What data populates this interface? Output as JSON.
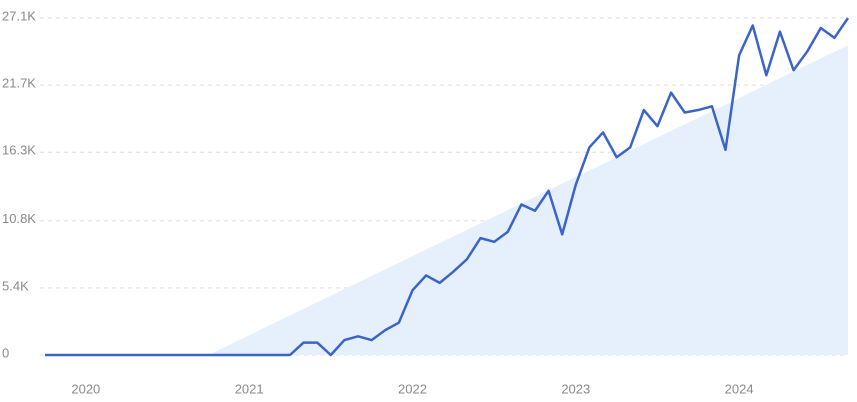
{
  "chart_data": {
    "type": "line",
    "categories": [
      null,
      null,
      null,
      "2020",
      null,
      null,
      null,
      null,
      null,
      null,
      null,
      null,
      null,
      null,
      null,
      "2021",
      null,
      null,
      null,
      null,
      null,
      null,
      null,
      null,
      null,
      null,
      null,
      "2022",
      null,
      null,
      null,
      null,
      null,
      null,
      null,
      null,
      null,
      null,
      null,
      "2023",
      null,
      null,
      null,
      null,
      null,
      null,
      null,
      null,
      null,
      null,
      null,
      "2024",
      null,
      null,
      null,
      null,
      null,
      null,
      null,
      null
    ],
    "series": [
      {
        "color": "#3a64c8",
        "values": [
          0,
          0,
          0,
          0,
          0,
          0,
          0,
          0,
          0,
          0,
          0,
          0,
          0,
          0,
          0,
          0,
          0,
          0,
          0,
          1000,
          1000,
          0,
          1200,
          1500,
          1200,
          2000,
          2600,
          5200,
          6400,
          5800,
          6700,
          7700,
          9400,
          9100,
          9900,
          12100,
          11600,
          13200,
          9700,
          13700,
          16700,
          17900,
          15900,
          16700,
          19700,
          18400,
          21100,
          19500,
          19700,
          20000,
          16500,
          24100,
          26500,
          22500,
          26000,
          22900,
          24400,
          26300,
          25500,
          27100
        ]
      }
    ],
    "trend": {
      "color": "#e6f0fd",
      "values": [
        null,
        null,
        null,
        null,
        null,
        null,
        null,
        null,
        null,
        null,
        null,
        null,
        0,
        530,
        1060,
        1590,
        2120,
        2650,
        3180,
        3710,
        4240,
        4770,
        5300,
        5830,
        6360,
        6890,
        7420,
        7950,
        8480,
        9010,
        9540,
        10070,
        10600,
        11130,
        11660,
        12190,
        12720,
        13250,
        13780,
        14310,
        14840,
        15370,
        15900,
        16430,
        16960,
        17490,
        18020,
        18550,
        19080,
        19610,
        20140,
        20670,
        21200,
        21730,
        22260,
        22790,
        23320,
        23850,
        24380,
        24910
      ]
    },
    "ylim": [
      0,
      27100
    ],
    "yticks": [
      0,
      {
        "value": 5400,
        "label": "5.4K"
      },
      {
        "value": 10800,
        "label": "10.8K"
      },
      {
        "value": 16300,
        "label": "16.3K"
      },
      {
        "value": 21700,
        "label": "21.7K"
      },
      {
        "value": 27100,
        "label": "27.1K"
      }
    ],
    "grid": true
  }
}
